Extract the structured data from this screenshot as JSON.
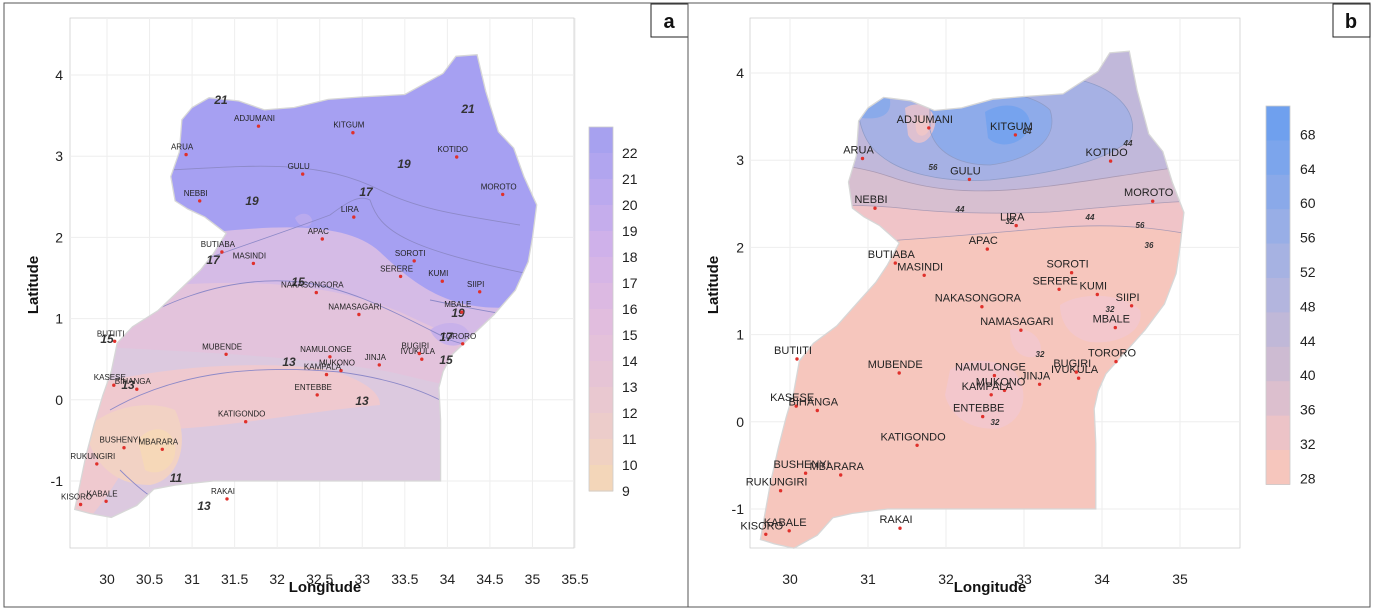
{
  "panels": {
    "a": {
      "tag": "a",
      "xlabel": "Longitude",
      "ylabel": "Latitude",
      "x_ticks": [
        "30",
        "30.5",
        "31",
        "31.5",
        "32",
        "32.5",
        "33",
        "33.5",
        "34",
        "34.5",
        "35",
        "35.5"
      ],
      "y_ticks": [
        "4",
        "3",
        "2",
        "1",
        "0",
        "-1"
      ],
      "colorbar_labels": [
        "22",
        "21",
        "20",
        "19",
        "18",
        "17",
        "16",
        "15",
        "14",
        "13",
        "12",
        "11",
        "10",
        "9"
      ],
      "colorbar_colors": [
        "#a7a1ef",
        "#b1a5ef",
        "#bba9ee",
        "#c5adec",
        "#cfb1ea",
        "#d6b5e6",
        "#dcb9e2",
        "#e1bdde",
        "#e4c1da",
        "#e6c4d5",
        "#e9c8d0",
        "#ecccca",
        "#f0d1c2",
        "#f3d6b9"
      ],
      "contour_labels": [
        "21",
        "21",
        "19",
        "19",
        "17",
        "17",
        "15",
        "15",
        "19",
        "17",
        "15",
        "13",
        "13",
        "13",
        "11",
        "13"
      ],
      "cities": [
        "ARUA",
        "ADJUMANI",
        "KITGUM",
        "KOTIDO",
        "GULU",
        "NEBBI",
        "APAC",
        "LIRA",
        "MOROTO",
        "BUTIABA",
        "MASINDI",
        "SOROTI",
        "SERERE",
        "KUMI",
        "NAKASONGORA",
        "SIIPI",
        "NAMASAGARI",
        "MBALE",
        "IVUKULA",
        "TORORO",
        "BUTIITI",
        "MUBENDE",
        "NAMULONGE",
        "BUGIRI",
        "MUKONO",
        "JINJA",
        "KAMPALA",
        "KASESE",
        "BIHANGA",
        "ENTEBBE",
        "KATIGONDO",
        "BUSHENYI",
        "MBARARA",
        "RUKUNGIRI",
        "RAKAI",
        "KABALE",
        "KISORO"
      ]
    },
    "b": {
      "tag": "b",
      "xlabel": "Longitude",
      "ylabel": "Latitude",
      "x_ticks": [
        "30",
        "31",
        "32",
        "33",
        "34",
        "35"
      ],
      "y_ticks": [
        "4",
        "3",
        "2",
        "1",
        "0",
        "-1"
      ],
      "colorbar_labels": [
        "68",
        "64",
        "60",
        "56",
        "52",
        "48",
        "44",
        "40",
        "36",
        "32",
        "28"
      ],
      "colorbar_colors": [
        "#6fa0ee",
        "#7ca5ec",
        "#8aa9e9",
        "#98aee6",
        "#a6b2e2",
        "#b3b5de",
        "#c0b8d8",
        "#cdbbd2",
        "#dcbfce",
        "#ecc3c7",
        "#f6c6bd"
      ],
      "contour_labels": [
        "64",
        "44",
        "56",
        "44",
        "44",
        "56",
        "32",
        "36",
        "32",
        "32",
        "32"
      ],
      "cities": [
        "ARUA",
        "ADJUMANI",
        "KITGUM",
        "KOTIDO",
        "GULU",
        "NEBBI",
        "APAC",
        "LIRA",
        "MOROTO",
        "BUTIABA",
        "MASINDI",
        "SOROTI",
        "SERERE",
        "KUMI",
        "NAKASONGORA",
        "SIIPI",
        "NAMASAGARI",
        "MBALE",
        "IVUKULA",
        "TORORO",
        "BUTIITI",
        "MUBENDE",
        "NAMULONGE",
        "BUGIRI",
        "MUKONO",
        "JINJA",
        "KAMPALA",
        "KASESE",
        "BIHANGA",
        "ENTEBBE",
        "KATIGONDO",
        "BUSHENYI",
        "MBARARA",
        "RUKUNGIRI",
        "RAKAI",
        "KABALE",
        "KISORO"
      ]
    }
  },
  "city_coords": [
    [
      30.93,
      3.02
    ],
    [
      31.78,
      3.37
    ],
    [
      32.89,
      3.29
    ],
    [
      34.11,
      2.99
    ],
    [
      32.3,
      2.78
    ],
    [
      31.09,
      2.45
    ],
    [
      32.53,
      1.98
    ],
    [
      32.9,
      2.25
    ],
    [
      34.65,
      2.53
    ],
    [
      31.35,
      1.82
    ],
    [
      31.72,
      1.68
    ],
    [
      33.61,
      1.71
    ],
    [
      33.45,
      1.52
    ],
    [
      33.94,
      1.46
    ],
    [
      32.46,
      1.32
    ],
    [
      34.38,
      1.33
    ],
    [
      32.96,
      1.05
    ],
    [
      34.17,
      1.08
    ],
    [
      33.7,
      0.5
    ],
    [
      34.18,
      0.69
    ],
    [
      30.09,
      0.72
    ],
    [
      31.4,
      0.56
    ],
    [
      32.62,
      0.53
    ],
    [
      33.67,
      0.57
    ],
    [
      32.75,
      0.36
    ],
    [
      33.2,
      0.43
    ],
    [
      32.58,
      0.31
    ],
    [
      30.08,
      0.18
    ],
    [
      30.35,
      0.13
    ],
    [
      32.47,
      0.06
    ],
    [
      31.63,
      -0.27
    ],
    [
      30.2,
      -0.59
    ],
    [
      30.65,
      -0.61
    ],
    [
      29.88,
      -0.79
    ],
    [
      31.41,
      -1.22
    ],
    [
      29.99,
      -1.25
    ],
    [
      29.69,
      -1.29
    ]
  ]
}
